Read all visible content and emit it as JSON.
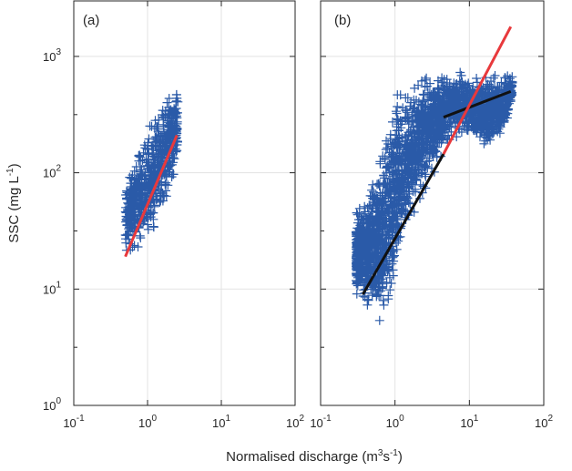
{
  "figure": {
    "ylabel": "SSC (mg L",
    "ylabel_sup": "-1",
    "ylabel_close": ")",
    "xlabel": "Normalised discharge (m",
    "xlabel_sup1": "3",
    "xlabel_mid": "s",
    "xlabel_sup2": "-1",
    "xlabel_close": ")"
  },
  "chart_data": [
    {
      "type": "scatter",
      "panel_label": "(a)",
      "x_scale": "log",
      "y_scale": "log",
      "xlim": [
        0.1,
        100
      ],
      "ylim": [
        1,
        3000
      ],
      "x_ticks": [
        0.1,
        1,
        10,
        100
      ],
      "x_tick_labels": [
        [
          "10",
          "-1"
        ],
        [
          "10",
          "0"
        ],
        [
          "10",
          "1"
        ],
        [
          "10",
          "2"
        ]
      ],
      "y_ticks": [
        1,
        10,
        100,
        1000
      ],
      "y_tick_labels": [
        [
          "10",
          "0"
        ],
        [
          "10",
          "1"
        ],
        [
          "10",
          "2"
        ],
        [
          "10",
          "3"
        ]
      ],
      "grid": true,
      "marker": "+",
      "marker_color": "#2a5aa8",
      "cloud": {
        "x_min": 0.5,
        "x_max": 2.6,
        "upper": [
          [
            0.5,
            95
          ],
          [
            0.7,
            160
          ],
          [
            0.9,
            240
          ],
          [
            1.3,
            380
          ],
          [
            1.8,
            520
          ],
          [
            2.4,
            680
          ]
        ],
        "lower": [
          [
            0.5,
            16
          ],
          [
            0.7,
            18
          ],
          [
            0.9,
            20
          ],
          [
            1.2,
            28
          ],
          [
            1.8,
            50
          ],
          [
            2.6,
            95
          ]
        ]
      },
      "fit_lines": [
        {
          "color": "#e8393c",
          "points": [
            [
              0.5,
              19
            ],
            [
              2.5,
              210
            ]
          ]
        }
      ]
    },
    {
      "type": "scatter",
      "panel_label": "(b)",
      "x_scale": "log",
      "y_scale": "log",
      "xlim": [
        0.1,
        100
      ],
      "ylim": [
        1,
        3000
      ],
      "x_ticks": [
        0.1,
        1,
        10,
        100
      ],
      "x_tick_labels": [
        [
          "10",
          "-1"
        ],
        [
          "10",
          "0"
        ],
        [
          "10",
          "1"
        ],
        [
          "10",
          "2"
        ]
      ],
      "y_ticks": [
        1,
        10,
        100,
        1000
      ],
      "y_tick_labels": [
        [
          "10",
          "0"
        ],
        [
          "10",
          "1"
        ],
        [
          "10",
          "2"
        ],
        [
          "10",
          "3"
        ]
      ],
      "grid": true,
      "marker": "+",
      "marker_color": "#2a5aa8",
      "cloud": {
        "x_min": 0.3,
        "x_max": 38,
        "upper": [
          [
            0.3,
            50
          ],
          [
            0.4,
            70
          ],
          [
            0.55,
            150
          ],
          [
            0.7,
            280
          ],
          [
            0.9,
            500
          ],
          [
            1.2,
            700
          ],
          [
            2,
            750
          ],
          [
            5,
            800
          ],
          [
            10,
            800
          ],
          [
            20,
            750
          ],
          [
            38,
            750
          ]
        ],
        "lower": [
          [
            0.3,
            8
          ],
          [
            0.4,
            6
          ],
          [
            0.55,
            4
          ],
          [
            0.7,
            3
          ],
          [
            1,
            8
          ],
          [
            1.5,
            25
          ],
          [
            3,
            80
          ],
          [
            6,
            200
          ],
          [
            10,
            180
          ],
          [
            20,
            150
          ],
          [
            30,
            200
          ],
          [
            38,
            420
          ]
        ]
      },
      "fit_lines": [
        {
          "color": "#111111",
          "points": [
            [
              0.37,
              9
            ],
            [
              4.5,
              145
            ]
          ]
        },
        {
          "color": "#111111",
          "points": [
            [
              4.5,
              300
            ],
            [
              36,
              500
            ]
          ]
        },
        {
          "color": "#e8393c",
          "points": [
            [
              4.5,
              145
            ],
            [
              36,
              1800
            ]
          ]
        }
      ]
    }
  ]
}
